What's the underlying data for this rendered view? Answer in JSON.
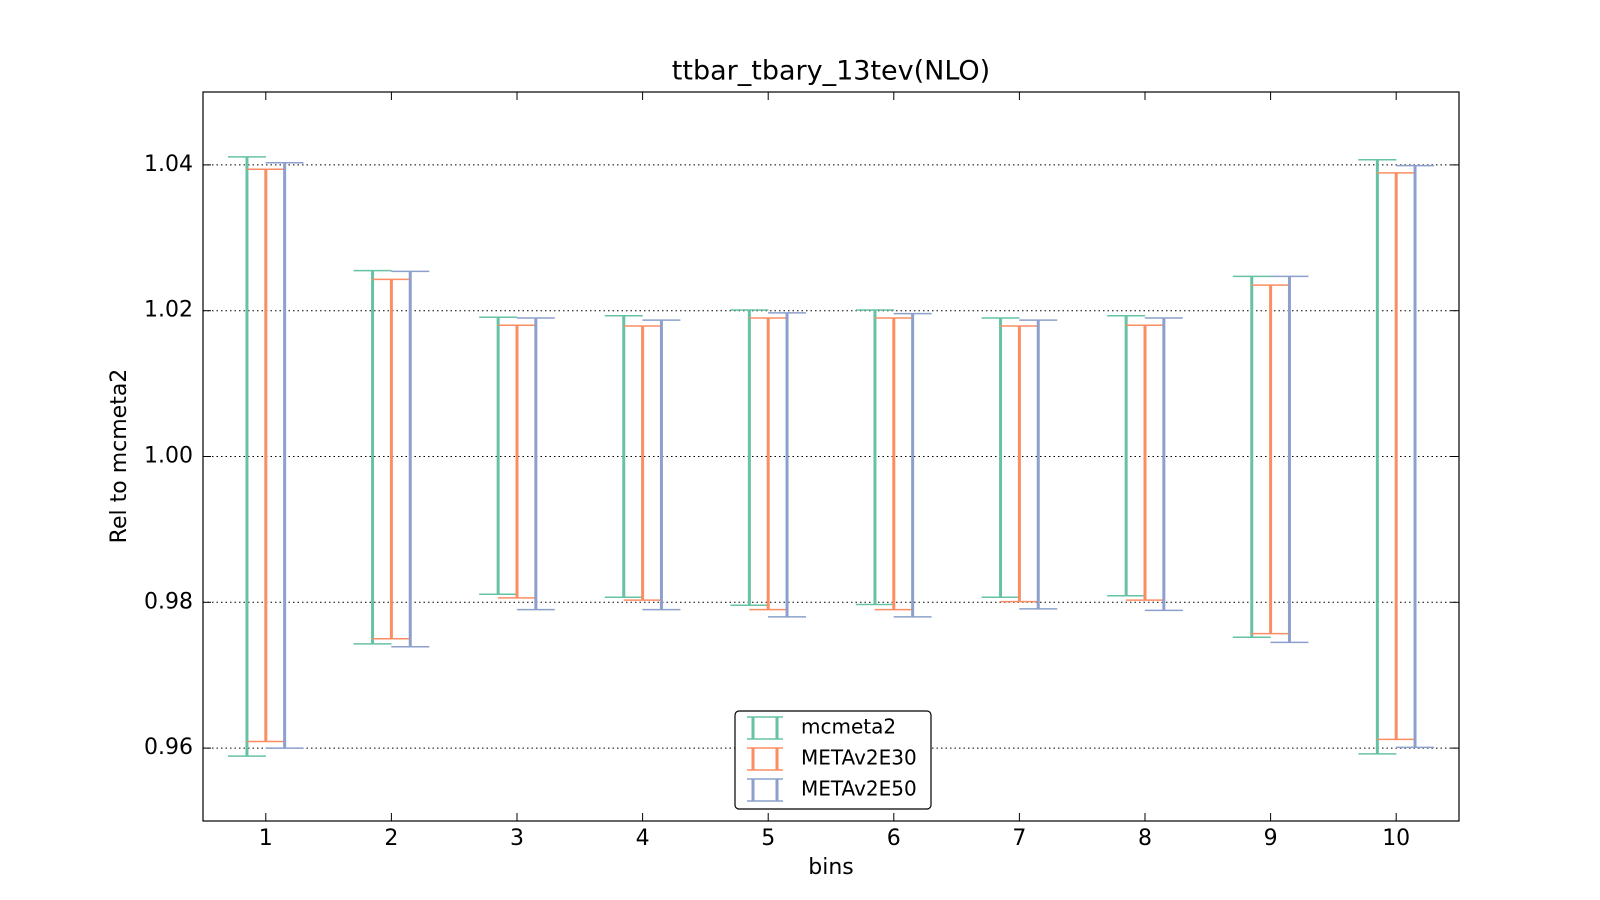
{
  "chart_data": {
    "type": "errorbar",
    "title": "ttbar_tbary_13tev(NLO)",
    "xlabel": "bins",
    "ylabel": "Rel to mcmeta2",
    "x": [
      1,
      2,
      3,
      4,
      5,
      6,
      7,
      8,
      9,
      10
    ],
    "xlim": [
      0.5,
      10.5
    ],
    "xticks": [
      1,
      2,
      3,
      4,
      5,
      6,
      7,
      8,
      9,
      10
    ],
    "ylim": [
      0.95,
      1.05
    ],
    "yticks": [
      0.96,
      0.98,
      {
        "value": 1,
        "label": "1.00"
      },
      1.02,
      1.04
    ],
    "grid": true,
    "legend": "lower center",
    "series": [
      {
        "name": "mcmeta2",
        "color": "#66c2a5",
        "low": [
          0.9589,
          0.9743,
          0.9811,
          0.9807,
          0.9796,
          0.9797,
          0.9807,
          0.9809,
          0.9752,
          0.9592
        ],
        "high": [
          1.0411,
          1.0255,
          1.0191,
          1.0193,
          1.0201,
          1.0201,
          1.019,
          1.0193,
          1.0247,
          1.0407
        ]
      },
      {
        "name": "METAv2E30",
        "color": "#fc8d62",
        "low": [
          0.9609,
          0.975,
          0.9806,
          0.9803,
          0.979,
          0.979,
          0.9801,
          0.9803,
          0.9757,
          0.9612
        ],
        "high": [
          1.0394,
          1.0243,
          1.018,
          1.0179,
          1.019,
          1.019,
          1.0179,
          1.018,
          1.0235,
          1.0389
        ]
      },
      {
        "name": "METAv2E50",
        "color": "#8da0cb",
        "low": [
          0.96,
          0.9739,
          0.979,
          0.979,
          0.978,
          0.978,
          0.9791,
          0.9789,
          0.9745,
          0.9601
        ],
        "high": [
          1.0403,
          1.0254,
          1.019,
          1.0187,
          1.0197,
          1.0196,
          1.0187,
          1.019,
          1.0247,
          1.0399
        ]
      }
    ]
  }
}
